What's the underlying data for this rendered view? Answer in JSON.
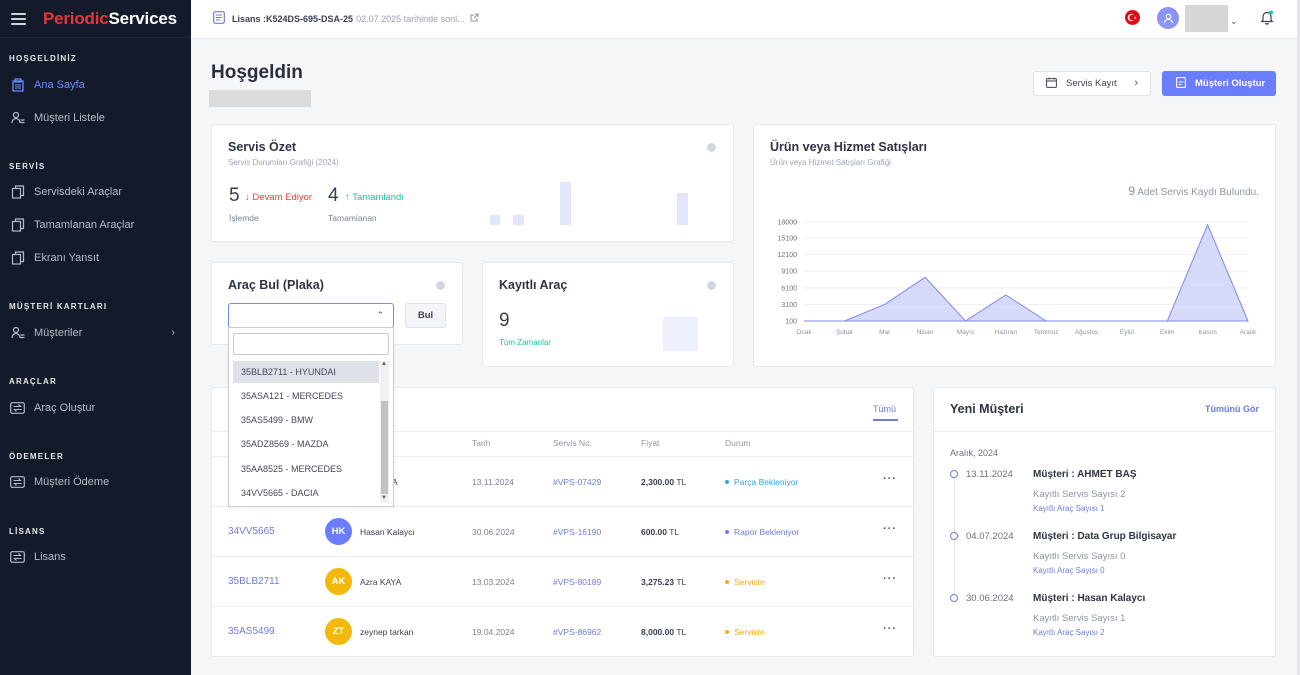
{
  "brand": {
    "part_a": "Periodic",
    "part_b": "Services"
  },
  "sidebar": {
    "sections": [
      {
        "title": "HOŞGELDİNİZ",
        "items": [
          {
            "label": "Ana Sayfa",
            "icon": "building-icon",
            "active": true
          },
          {
            "label": "Müşteri Listele",
            "icon": "user-list-icon"
          }
        ]
      },
      {
        "title": "SERVİS",
        "items": [
          {
            "label": "Servisdeki Araçlar",
            "icon": "copy-icon"
          },
          {
            "label": "Tamamlanan Araçlar",
            "icon": "copy-icon"
          },
          {
            "label": "Ekranı Yansıt",
            "icon": "copy-icon"
          }
        ]
      },
      {
        "title": "MÜŞTERİ KARTLARI",
        "items": [
          {
            "label": "Müşteriler",
            "icon": "user-list-icon",
            "has_children": true
          }
        ]
      },
      {
        "title": "ARAÇLAR",
        "items": [
          {
            "label": "Araç Oluştur",
            "icon": "swap-icon"
          }
        ]
      },
      {
        "title": "ÖDEMELER",
        "items": [
          {
            "label": "Müşteri Ödeme",
            "icon": "swap-icon"
          }
        ]
      },
      {
        "title": "LİSANS",
        "items": [
          {
            "label": "Lisans",
            "icon": "swap-icon"
          }
        ]
      }
    ]
  },
  "topbar": {
    "license_code": "Lisans :K524DS-695-DSA-25",
    "license_note": "02.07.2025 tarihinde sonl..."
  },
  "header": {
    "title": "Hoşgeldin",
    "btn_servis": "Servis Kayıt",
    "btn_musteri": "Müşteri Oluştur"
  },
  "servis_ozet": {
    "title": "Servis Özet",
    "subtitle": "Servis Durumları Grafiği (2024)",
    "stat1": {
      "value": "5",
      "trend": "↓ Devam Ediyor",
      "label": "İşlemde"
    },
    "stat2": {
      "value": "4",
      "trend": "↑ Tamamlandı",
      "label": "Tamamlanan"
    }
  },
  "arac_bul": {
    "title": "Araç Bul (Plaka)",
    "button": "Bul",
    "options": [
      "35BLB2711 - HYUNDAI",
      "35ASA121 - MERCEDES",
      "35AS5499 - BMW",
      "35ADZ8569 - MAZDA",
      "35AA8525 - MERCEDES",
      "34VV5665 - DACIA"
    ]
  },
  "kayitli_arac": {
    "title": "Kayıtlı Araç",
    "value": "9",
    "label": "Tüm Zamanlar"
  },
  "urun_satis": {
    "title": "Ürün veya Hizmet Satışları",
    "subtitle": "Ürün veya Hizmet Satışları Grafiği",
    "count": "9",
    "count_text": "Adet Servis Kaydı Bulundu."
  },
  "chart_data": {
    "type": "area",
    "title": "Ürün veya Hizmet Satışları",
    "categories": [
      "Ocak",
      "Şubat",
      "Mar",
      "Nisan",
      "Mayıs",
      "Haziran",
      "Temmuz",
      "Ağustos",
      "Eylül",
      "Ekim",
      "Kasım",
      "Aralık"
    ],
    "values": [
      100,
      100,
      3100,
      8000,
      100,
      4800,
      100,
      100,
      100,
      100,
      17500,
      100
    ],
    "yticks": [
      100,
      3100,
      6100,
      9100,
      12100,
      15100,
      18000
    ],
    "ylim": [
      100,
      18000
    ]
  },
  "servis_tablo": {
    "all_link": "Tümü",
    "columns": [
      "Tarih",
      "Servis No.",
      "Fiyat",
      "Durum"
    ],
    "rows": [
      {
        "plate": "",
        "initials": "",
        "name": "A",
        "date": "13.11.2024",
        "no": "#VPS-07429",
        "price": "2,300.00",
        "currency": "TL",
        "status": "Parça Bekleniyor",
        "status_color": "#3aa0e6"
      },
      {
        "plate": "34VV5665",
        "initials": "HK",
        "name": "Hasan Kalaycı",
        "date": "30.06.2024",
        "no": "#VPS-16190",
        "price": "600.00",
        "currency": "TL",
        "status": "Rapor Bekleniyor",
        "status_color": "#6d7dd8",
        "avatar_color": "#6a7dfc"
      },
      {
        "plate": "35BLB2711",
        "initials": "AK",
        "name": "Azra KAYA",
        "date": "13.03.2024",
        "no": "#VPS-80189",
        "price": "3,275.23",
        "currency": "TL",
        "status": "Serviste",
        "status_color": "#f2a91e",
        "avatar_color": "#f2b90c"
      },
      {
        "plate": "35AS5499",
        "initials": "ZT",
        "name": "zeynep tarkan",
        "date": "19.04.2024",
        "no": "#VPS-86962",
        "price": "8,000.00",
        "currency": "TL",
        "status": "Serviste",
        "status_color": "#f2a91e",
        "avatar_color": "#f2b90c"
      }
    ]
  },
  "yeni_musteri": {
    "title": "Yeni Müşteri",
    "all_link": "Tümünü Gör",
    "month": "Aralık, 2024",
    "items": [
      {
        "date": "13.11.2024",
        "name": "Müşteri : AHMET BAŞ",
        "servis": "Kayıtlı Servis Sayısı 2",
        "arac": "Kayıtlı Araç Sayısı 1"
      },
      {
        "date": "04.07.2024",
        "name": "Müşteri : Data Grup Bilgisayar",
        "servis": "Kayıtlı Servis Sayısı 0",
        "arac": "Kayıtlı Araç Sayısı 0"
      },
      {
        "date": "30.06.2024",
        "name": "Müşteri : Hasan Kalaycı",
        "servis": "Kayıtlı Servis Sayısı 1",
        "arac": "Kayıtlı Araç Sayısı 2"
      }
    ]
  }
}
